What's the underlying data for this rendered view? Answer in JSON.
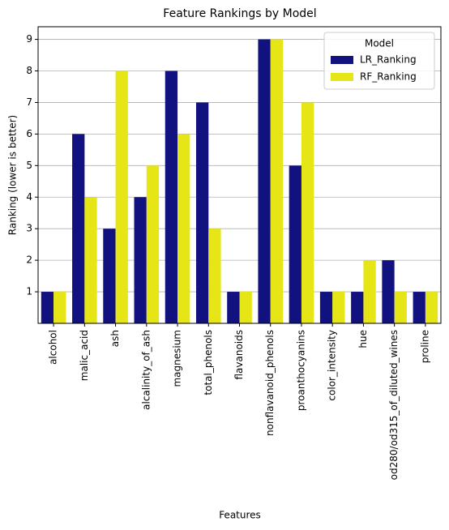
{
  "chart_data": {
    "type": "bar",
    "title": "Feature Rankings by Model",
    "x_label": "Features",
    "y_label": "Ranking (lower is better)",
    "categories": [
      "alcohol",
      "malic_acid",
      "ash",
      "alcalinity_of_ash",
      "magnesium",
      "total_phenols",
      "flavanoids",
      "nonflavanoid_phenols",
      "proanthocyanins",
      "color_intensity",
      "hue",
      "od280/od315_of_diluted_wines",
      "proline"
    ],
    "series": [
      {
        "name": "LR_Ranking",
        "color": "#11117f",
        "values": [
          1,
          6,
          3,
          4,
          8,
          7,
          1,
          9,
          5,
          1,
          1,
          2,
          1
        ]
      },
      {
        "name": "RF_Ranking",
        "color": "#e6e617",
        "values": [
          1,
          4,
          8,
          5,
          6,
          3,
          1,
          9,
          7,
          1,
          2,
          1,
          1
        ]
      }
    ],
    "legend_title": "Model",
    "legend": "upper right",
    "ylim": [
      0,
      9.4
    ],
    "yticks": [
      1,
      2,
      3,
      4,
      5,
      6,
      7,
      8,
      9
    ],
    "grid": true
  }
}
